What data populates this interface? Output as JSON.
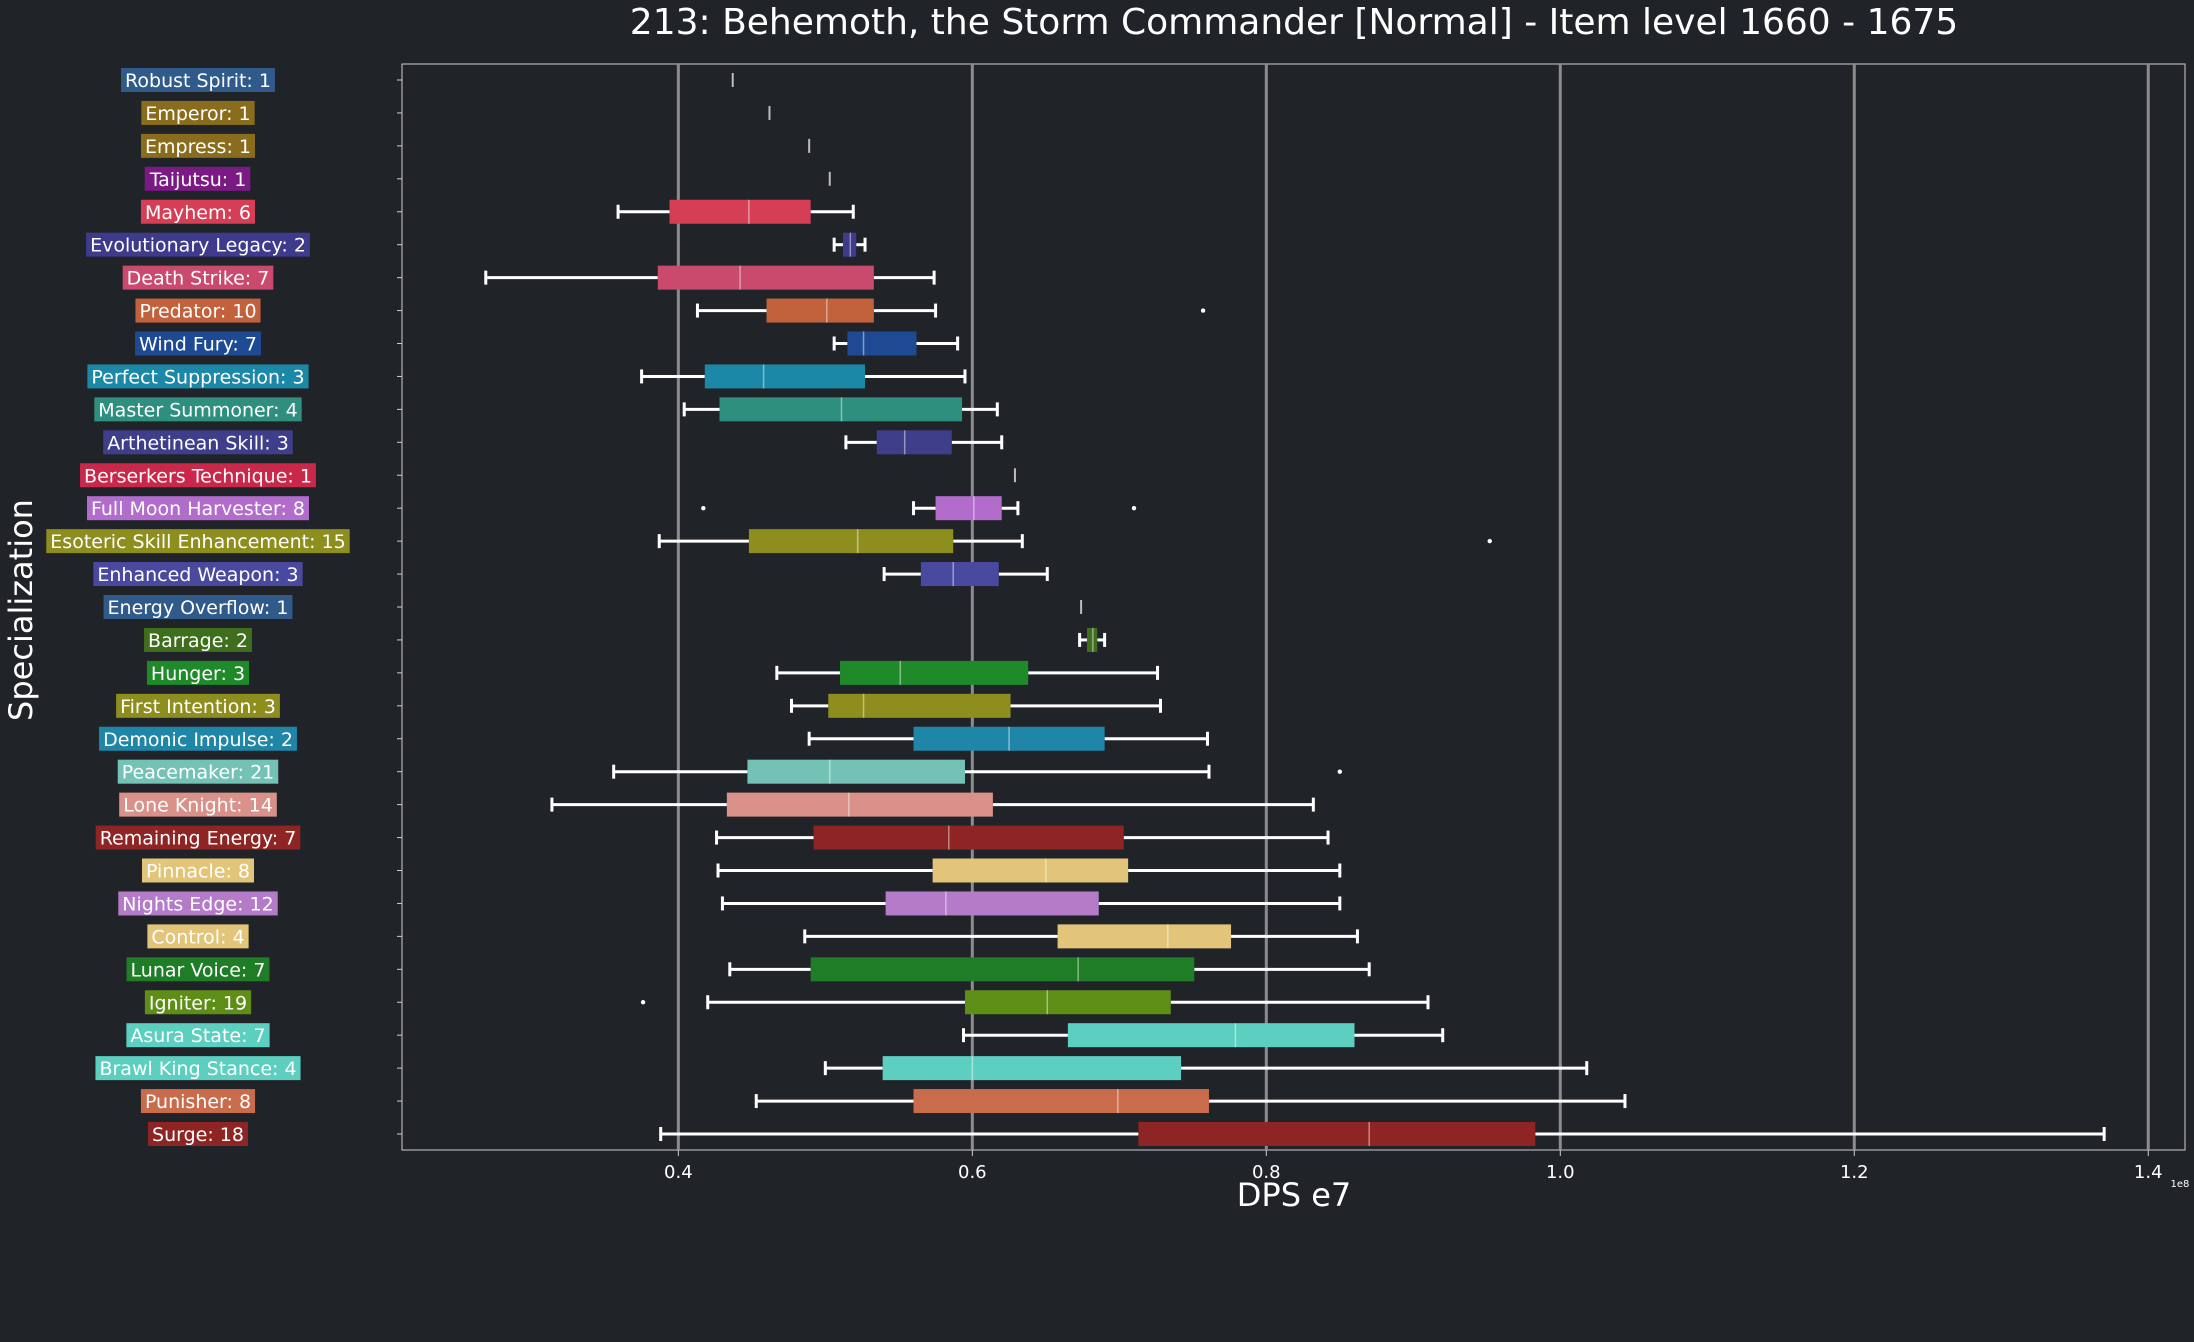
{
  "chart_data": {
    "type": "boxplot",
    "orientation": "horizontal",
    "title": "213: Behemoth, the Storm Commander [Normal] - Item level 1660 - 1675",
    "xlabel": "DPS e7",
    "ylabel": "Specialization",
    "offset_text": "1e8",
    "xlim": [
      0.212,
      1.425
    ],
    "xticks": [
      0.4,
      0.6,
      0.8,
      1.0,
      1.2,
      1.4
    ],
    "xtick_labels": [
      "0.4",
      "0.6",
      "0.8",
      "1.0",
      "1.2",
      "1.4"
    ],
    "grid": "vertical",
    "colors": {
      "background": "#202328",
      "grid": "#8c8c8c",
      "text": "#ffffff",
      "whisker": "#ffffff"
    },
    "series": [
      {
        "label": "Robust Spirit: 1",
        "color": "#2f5a8a",
        "min": 0.437,
        "q1": 0.437,
        "median": 0.437,
        "q3": 0.437,
        "max": 0.437,
        "outliers": []
      },
      {
        "label": "Emperor: 1",
        "color": "#8a6c1d",
        "min": 0.462,
        "q1": 0.462,
        "median": 0.462,
        "q3": 0.462,
        "max": 0.462,
        "outliers": []
      },
      {
        "label": "Empress: 1",
        "color": "#8a6c1d",
        "min": 0.489,
        "q1": 0.489,
        "median": 0.489,
        "q3": 0.489,
        "max": 0.489,
        "outliers": []
      },
      {
        "label": "Taijutsu: 1",
        "color": "#7b1a85",
        "min": 0.503,
        "q1": 0.503,
        "median": 0.503,
        "q3": 0.503,
        "max": 0.503,
        "outliers": []
      },
      {
        "label": "Mayhem: 6",
        "color": "#d63e55",
        "min": 0.359,
        "q1": 0.394,
        "median": 0.448,
        "q3": 0.49,
        "max": 0.519,
        "outliers": []
      },
      {
        "label": "Evolutionary Legacy: 2",
        "color": "#3e3a8c",
        "min": 0.506,
        "q1": 0.512,
        "median": 0.517,
        "q3": 0.521,
        "max": 0.527,
        "outliers": []
      },
      {
        "label": "Death Strike: 7",
        "color": "#c94a6c",
        "min": 0.269,
        "q1": 0.386,
        "median": 0.442,
        "q3": 0.533,
        "max": 0.574,
        "outliers": []
      },
      {
        "label": "Predator: 10",
        "color": "#c2623c",
        "min": 0.413,
        "q1": 0.46,
        "median": 0.501,
        "q3": 0.533,
        "max": 0.575,
        "outliers": [
          0.757
        ]
      },
      {
        "label": "Wind Fury: 7",
        "color": "#1e4a94",
        "min": 0.506,
        "q1": 0.515,
        "median": 0.526,
        "q3": 0.562,
        "max": 0.59,
        "outliers": []
      },
      {
        "label": "Perfect Suppression: 3",
        "color": "#1c88a8",
        "min": 0.375,
        "q1": 0.418,
        "median": 0.458,
        "q3": 0.527,
        "max": 0.595,
        "outliers": []
      },
      {
        "label": "Master Summoner: 4",
        "color": "#2e8f7e",
        "min": 0.404,
        "q1": 0.428,
        "median": 0.511,
        "q3": 0.593,
        "max": 0.617,
        "outliers": []
      },
      {
        "label": "Arthetinean Skill: 3",
        "color": "#3f3e8a",
        "min": 0.514,
        "q1": 0.535,
        "median": 0.554,
        "q3": 0.586,
        "max": 0.62,
        "outliers": []
      },
      {
        "label": "Berserkers Technique: 1",
        "color": "#c9284a",
        "min": 0.629,
        "q1": 0.629,
        "median": 0.629,
        "q3": 0.629,
        "max": 0.629,
        "outliers": []
      },
      {
        "label": "Full Moon Harvester: 8",
        "color": "#b26ccc",
        "min": 0.56,
        "q1": 0.575,
        "median": 0.601,
        "q3": 0.62,
        "max": 0.631,
        "outliers": [
          0.417,
          0.71
        ]
      },
      {
        "label": "Esoteric Skill Enhancement: 15",
        "color": "#8e8e1e",
        "min": 0.387,
        "q1": 0.448,
        "median": 0.522,
        "q3": 0.587,
        "max": 0.634,
        "outliers": [
          0.952
        ]
      },
      {
        "label": "Enhanced Weapon: 3",
        "color": "#4a49a0",
        "min": 0.54,
        "q1": 0.565,
        "median": 0.587,
        "q3": 0.618,
        "max": 0.651,
        "outliers": []
      },
      {
        "label": "Energy Overflow: 1",
        "color": "#2f5a8a",
        "min": 0.674,
        "q1": 0.674,
        "median": 0.674,
        "q3": 0.674,
        "max": 0.674,
        "outliers": []
      },
      {
        "label": "Barrage: 2",
        "color": "#3f6e1c",
        "min": 0.673,
        "q1": 0.678,
        "median": 0.682,
        "q3": 0.685,
        "max": 0.69,
        "outliers": []
      },
      {
        "label": "Hunger: 3",
        "color": "#1f8a2a",
        "min": 0.467,
        "q1": 0.51,
        "median": 0.551,
        "q3": 0.638,
        "max": 0.726,
        "outliers": []
      },
      {
        "label": "First Intention: 3",
        "color": "#8e8e1e",
        "min": 0.477,
        "q1": 0.502,
        "median": 0.526,
        "q3": 0.626,
        "max": 0.728,
        "outliers": []
      },
      {
        "label": "Demonic Impulse: 2",
        "color": "#1f86a8",
        "min": 0.489,
        "q1": 0.56,
        "median": 0.625,
        "q3": 0.69,
        "max": 0.76,
        "outliers": []
      },
      {
        "label": "Peacemaker: 21",
        "color": "#74c2b6",
        "min": 0.356,
        "q1": 0.447,
        "median": 0.503,
        "q3": 0.595,
        "max": 0.761,
        "outliers": [
          0.85
        ]
      },
      {
        "label": "Lone Knight: 14",
        "color": "#d9918a",
        "min": 0.314,
        "q1": 0.433,
        "median": 0.516,
        "q3": 0.614,
        "max": 0.832,
        "outliers": []
      },
      {
        "label": "Remaining Energy: 7",
        "color": "#8e2424",
        "min": 0.426,
        "q1": 0.492,
        "median": 0.584,
        "q3": 0.703,
        "max": 0.842,
        "outliers": []
      },
      {
        "label": "Pinnacle: 8",
        "color": "#e3c57a",
        "min": 0.427,
        "q1": 0.573,
        "median": 0.65,
        "q3": 0.706,
        "max": 0.85,
        "outliers": []
      },
      {
        "label": "Nights Edge: 12",
        "color": "#b47bc9",
        "min": 0.43,
        "q1": 0.541,
        "median": 0.582,
        "q3": 0.686,
        "max": 0.85,
        "outliers": []
      },
      {
        "label": "Control: 4",
        "color": "#e3c57a",
        "min": 0.486,
        "q1": 0.658,
        "median": 0.733,
        "q3": 0.776,
        "max": 0.862,
        "outliers": []
      },
      {
        "label": "Lunar Voice: 7",
        "color": "#1e7d26",
        "min": 0.435,
        "q1": 0.49,
        "median": 0.672,
        "q3": 0.751,
        "max": 0.87,
        "outliers": []
      },
      {
        "label": "Igniter: 19",
        "color": "#5e8e16",
        "min": 0.42,
        "q1": 0.595,
        "median": 0.651,
        "q3": 0.735,
        "max": 0.91,
        "outliers": [
          0.376
        ]
      },
      {
        "label": "Asura State: 7",
        "color": "#5dcfc1",
        "min": 0.594,
        "q1": 0.665,
        "median": 0.779,
        "q3": 0.86,
        "max": 0.92,
        "outliers": []
      },
      {
        "label": "Brawl King Stance: 4",
        "color": "#5dcfc1",
        "min": 0.5,
        "q1": 0.539,
        "median": 0.6,
        "q3": 0.742,
        "max": 1.018,
        "outliers": []
      },
      {
        "label": "Punisher: 8",
        "color": "#c96c4c",
        "min": 0.453,
        "q1": 0.56,
        "median": 0.699,
        "q3": 0.761,
        "max": 1.044,
        "outliers": []
      },
      {
        "label": "Surge: 18",
        "color": "#8e2424",
        "min": 0.388,
        "q1": 0.713,
        "median": 0.87,
        "q3": 0.983,
        "max": 1.37,
        "outliers": []
      }
    ]
  }
}
